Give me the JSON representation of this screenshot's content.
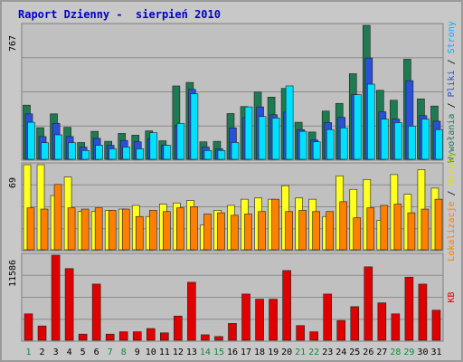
{
  "title": "Raport Dzienny -  sierpień 2010",
  "colors": {
    "background": "#c8c8c8",
    "panel": "#c0c0c0",
    "title": "#0000c8",
    "visits": "#1e7a50",
    "pages": "#2850d8",
    "files": "#00e0ff",
    "hosts": "#ffff20",
    "bandwidth_kb": "#ff7f00",
    "kb": "#e00000",
    "weekend_day": "#128a3c"
  },
  "chart_data": [
    {
      "type": "bar",
      "panel": "top",
      "y_axis_max_label": "767",
      "right_legend": [
        {
          "text": "Wywołania",
          "color": "#1e7a50"
        },
        {
          "text": " / ",
          "color": "#000000"
        },
        {
          "text": "Pliki",
          "color": "#2850d8"
        },
        {
          "text": " / ",
          "color": "#000000"
        },
        {
          "text": "Strony",
          "color": "#00b0ff"
        }
      ],
      "ylim": [
        0,
        767
      ],
      "categories": [
        "1",
        "2",
        "3",
        "4",
        "5",
        "6",
        "7",
        "8",
        "9",
        "10",
        "11",
        "12",
        "13",
        "14",
        "15",
        "16",
        "17",
        "18",
        "19",
        "20",
        "21",
        "22",
        "23",
        "24",
        "25",
        "26",
        "27",
        "28",
        "29",
        "30",
        "31"
      ],
      "series": [
        {
          "name": "Wywołania",
          "values": [
            310,
            181,
            260,
            183,
            96,
            160,
            103,
            148,
            138,
            163,
            106,
            420,
            440,
            100,
            103,
            262,
            302,
            385,
            356,
            406,
            212,
            156,
            276,
            320,
            490,
            767,
            395,
            338,
            573,
            346,
            305
          ]
        },
        {
          "name": "Pliki",
          "values": [
            260,
            130,
            206,
            130,
            70,
            120,
            80,
            108,
            100,
            118,
            80,
            195,
            400,
            70,
            60,
            180,
            240,
            300,
            255,
            270,
            170,
            110,
            210,
            240,
            370,
            580,
            272,
            230,
            450,
            250,
            218
          ]
        },
        {
          "name": "Strony",
          "values": [
            212,
            95,
            140,
            95,
            50,
            80,
            60,
            70,
            60,
            152,
            80,
            205,
            375,
            50,
            50,
            96,
            300,
            245,
            236,
            420,
            160,
            100,
            170,
            180,
            370,
            430,
            230,
            210,
            190,
            230,
            170
          ]
        }
      ]
    },
    {
      "type": "bar",
      "panel": "middle",
      "y_axis_max_label": "69",
      "right_legend": [
        {
          "text": "Lokalizacje",
          "color": "#ff7f00"
        },
        {
          "text": " / ",
          "color": "#000000"
        },
        {
          "text": "Wizyty",
          "color": "#e0e000"
        }
      ],
      "ylim": [
        0,
        69
      ],
      "categories": [
        "1",
        "2",
        "3",
        "4",
        "5",
        "6",
        "7",
        "8",
        "9",
        "10",
        "11",
        "12",
        "13",
        "14",
        "15",
        "16",
        "17",
        "18",
        "19",
        "20",
        "21",
        "22",
        "23",
        "24",
        "25",
        "26",
        "27",
        "28",
        "29",
        "30",
        "31"
      ],
      "series": [
        {
          "name": "Wizyty",
          "values": [
            69,
            69,
            44,
            59,
            31,
            31,
            32,
            33,
            36,
            27,
            37,
            38,
            40,
            20,
            32,
            36,
            41,
            42,
            41,
            52,
            42,
            41,
            27,
            60,
            49,
            57,
            24,
            61,
            45,
            65,
            50
          ]
        },
        {
          "name": "Lokalizacje",
          "values": [
            34,
            33,
            53,
            34,
            33,
            34,
            32,
            33,
            27,
            32,
            31,
            34,
            35,
            29,
            30,
            28,
            29,
            31,
            41,
            31,
            32,
            31,
            31,
            39,
            26,
            34,
            36,
            37,
            30,
            33,
            41
          ]
        }
      ]
    },
    {
      "type": "bar",
      "panel": "bottom",
      "y_axis_max_label": "11586",
      "right_legend": [
        {
          "text": "KB",
          "color": "#e00000"
        }
      ],
      "ylim": [
        0,
        11586
      ],
      "categories": [
        "1",
        "2",
        "3",
        "4",
        "5",
        "6",
        "7",
        "8",
        "9",
        "10",
        "11",
        "12",
        "13",
        "14",
        "15",
        "16",
        "17",
        "18",
        "19",
        "20",
        "21",
        "22",
        "23",
        "24",
        "25",
        "26",
        "27",
        "28",
        "29",
        "30",
        "31"
      ],
      "series": [
        {
          "name": "KB",
          "values": [
            3600,
            1954,
            11586,
            9768,
            840,
            7653,
            840,
            1160,
            1160,
            1600,
            1013,
            3300,
            7900,
            750,
            510,
            2300,
            6300,
            5600,
            5600,
            9500,
            2000,
            1160,
            6300,
            2700,
            4580,
            10000,
            5100,
            3600,
            8600,
            7650,
            4100
          ]
        }
      ]
    }
  ],
  "x_labels": [
    {
      "text": "1",
      "weekend": true
    },
    {
      "text": "2",
      "weekend": false
    },
    {
      "text": "3",
      "weekend": false
    },
    {
      "text": "4",
      "weekend": false
    },
    {
      "text": "5",
      "weekend": false
    },
    {
      "text": "6",
      "weekend": false
    },
    {
      "text": "7",
      "weekend": true
    },
    {
      "text": "8",
      "weekend": true
    },
    {
      "text": "9",
      "weekend": false
    },
    {
      "text": "10",
      "weekend": false
    },
    {
      "text": "11",
      "weekend": false
    },
    {
      "text": "12",
      "weekend": false
    },
    {
      "text": "13",
      "weekend": false
    },
    {
      "text": "14",
      "weekend": true
    },
    {
      "text": "15",
      "weekend": true
    },
    {
      "text": "16",
      "weekend": false
    },
    {
      "text": "17",
      "weekend": false
    },
    {
      "text": "18",
      "weekend": false
    },
    {
      "text": "19",
      "weekend": false
    },
    {
      "text": "20",
      "weekend": false
    },
    {
      "text": "21",
      "weekend": true
    },
    {
      "text": "22",
      "weekend": true
    },
    {
      "text": "23",
      "weekend": false
    },
    {
      "text": "24",
      "weekend": false
    },
    {
      "text": "25",
      "weekend": false
    },
    {
      "text": "26",
      "weekend": false
    },
    {
      "text": "27",
      "weekend": false
    },
    {
      "text": "28",
      "weekend": true
    },
    {
      "text": "29",
      "weekend": true
    },
    {
      "text": "30",
      "weekend": false
    },
    {
      "text": "31",
      "weekend": false
    }
  ]
}
